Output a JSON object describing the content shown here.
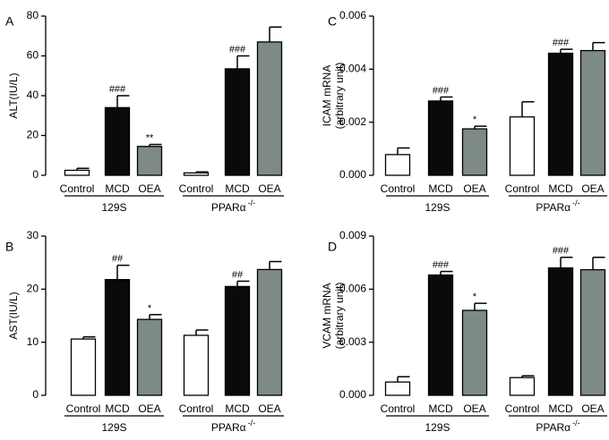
{
  "panels": [
    {
      "letter": "A"
    },
    {
      "letter": "C"
    },
    {
      "letter": "B"
    },
    {
      "letter": "D"
    }
  ],
  "chart_data": [
    {
      "type": "bar",
      "panel": "A",
      "ylabel": "ALT(IU/L)",
      "ylim": [
        0,
        80
      ],
      "yticks": [
        0,
        20,
        40,
        60,
        80
      ],
      "ytick_labels": [
        "0",
        "20",
        "40",
        "60",
        "80"
      ],
      "groups": [
        {
          "name": "129S",
          "superscript": ""
        },
        {
          "name": "PPARα",
          "superscript": "-/-"
        }
      ],
      "categories": [
        "Control",
        "MCD",
        "OEA"
      ],
      "bar_colors": [
        "#ffffff",
        "#0a0a0a",
        "#7d8a85"
      ],
      "values": [
        [
          2.5,
          34,
          14.5
        ],
        [
          1.2,
          53.5,
          67
        ]
      ],
      "errors": [
        [
          1,
          6,
          1
        ],
        [
          0.5,
          6.5,
          7.5
        ]
      ],
      "annotations": [
        [
          "",
          "###",
          "**"
        ],
        [
          "",
          "###",
          ""
        ]
      ]
    },
    {
      "type": "bar",
      "panel": "C",
      "ylabel": "ICAM mRNA",
      "ylabel2": "(arbitrary unit)",
      "ylim": [
        0,
        0.006
      ],
      "yticks": [
        0,
        0.002,
        0.004,
        0.006
      ],
      "ytick_labels": [
        "0.000",
        "0.002",
        "0.004",
        "0.006"
      ],
      "groups": [
        {
          "name": "129S",
          "superscript": ""
        },
        {
          "name": "PPARα",
          "superscript": "-/-"
        }
      ],
      "categories": [
        "Control",
        "MCD",
        "OEA"
      ],
      "bar_colors": [
        "#ffffff",
        "#0a0a0a",
        "#7d8a85"
      ],
      "values": [
        [
          0.00078,
          0.0028,
          0.00175
        ],
        [
          0.0022,
          0.0046,
          0.0047
        ]
      ],
      "errors": [
        [
          0.00025,
          0.00015,
          0.0001
        ],
        [
          0.00057,
          0.00015,
          0.0003
        ]
      ],
      "annotations": [
        [
          "",
          "###",
          "*"
        ],
        [
          "",
          "###",
          ""
        ]
      ]
    },
    {
      "type": "bar",
      "panel": "B",
      "ylabel": "AST(IU/L)",
      "ylim": [
        0,
        30
      ],
      "yticks": [
        0,
        10,
        20,
        30
      ],
      "ytick_labels": [
        "0",
        "10",
        "20",
        "30"
      ],
      "groups": [
        {
          "name": "129S",
          "superscript": ""
        },
        {
          "name": "PPARα",
          "superscript": "-/-"
        }
      ],
      "categories": [
        "Control",
        "MCD",
        "OEA"
      ],
      "bar_colors": [
        "#ffffff",
        "#0a0a0a",
        "#7d8a85"
      ],
      "values": [
        [
          10.6,
          21.8,
          14.3
        ],
        [
          11.3,
          20.5,
          23.7
        ]
      ],
      "errors": [
        [
          0.4,
          2.7,
          0.9
        ],
        [
          1.0,
          1.0,
          1.5
        ]
      ],
      "annotations": [
        [
          "",
          "##",
          "*"
        ],
        [
          "",
          "##",
          ""
        ]
      ]
    },
    {
      "type": "bar",
      "panel": "D",
      "ylabel": "VCAM mRNA",
      "ylabel2": "(arbitrary unit)",
      "ylim": [
        0,
        0.009
      ],
      "yticks": [
        0,
        0.003,
        0.006,
        0.009
      ],
      "ytick_labels": [
        "0.000",
        "0.003",
        "0.006",
        "0.009"
      ],
      "groups": [
        {
          "name": "129S",
          "superscript": ""
        },
        {
          "name": "PPARα",
          "superscript": "-/-"
        }
      ],
      "categories": [
        "Control",
        "MCD",
        "OEA"
      ],
      "bar_colors": [
        "#ffffff",
        "#0a0a0a",
        "#7d8a85"
      ],
      "values": [
        [
          0.00075,
          0.0068,
          0.0048
        ],
        [
          0.001,
          0.0072,
          0.0071
        ]
      ],
      "errors": [
        [
          0.0003,
          0.0002,
          0.0004
        ],
        [
          0.0001,
          0.0006,
          0.0007
        ]
      ],
      "annotations": [
        [
          "",
          "###",
          "*"
        ],
        [
          "",
          "###",
          ""
        ]
      ]
    }
  ]
}
